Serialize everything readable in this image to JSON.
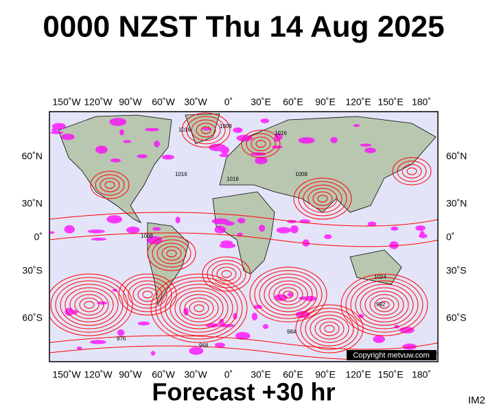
{
  "title": "0000 NZST Thu 14 Aug 2025",
  "map": {
    "longitude_labels": [
      "150˚W",
      "120˚W",
      "90˚W",
      "60˚W",
      "30˚W",
      "0˚",
      "30˚E",
      "60˚E",
      "90˚E",
      "120˚E",
      "150˚E",
      "180˚"
    ],
    "latitude_labels": [
      "60˚N",
      "30˚N",
      "0˚",
      "30˚S",
      "60˚S"
    ],
    "isobar_labels": [
      "1016",
      "1008",
      "1016",
      "1008",
      "1024",
      "1016",
      "992",
      "984",
      "976",
      "968",
      "1008",
      "1016"
    ],
    "copyright": "Copyright metvuw.com"
  },
  "footer": {
    "forecast": "Forecast +30 hr",
    "image_id": "IM2"
  }
}
